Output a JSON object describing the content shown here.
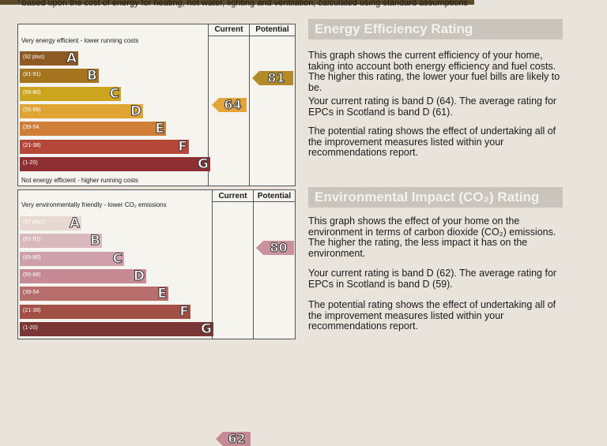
{
  "note": "based upon the cost of energy for heating, hot water, lighting and ventilation, calculated using standard assumptions",
  "energy": {
    "col_current": "Current",
    "col_potential": "Potential",
    "top_label": "Very energy efficient - lower running costs",
    "bottom_label": "Not energy efficient - higher running costs",
    "bands": [
      {
        "range": "(92 plus)",
        "letter": "A",
        "color": "#8c5a22"
      },
      {
        "range": "(81-91)",
        "letter": "B",
        "color": "#a5741e"
      },
      {
        "range": "(69-80)",
        "letter": "C",
        "color": "#cca51f"
      },
      {
        "range": "(55-68)",
        "letter": "D",
        "color": "#dfa434"
      },
      {
        "range": "(39-54",
        "letter": "E",
        "color": "#cf7f38"
      },
      {
        "range": "(21-38)",
        "letter": "F",
        "color": "#b5463a"
      },
      {
        "range": "(1-20)",
        "letter": "G",
        "color": "#8d2f33"
      }
    ],
    "current": "64",
    "potential": "81",
    "current_color": "#e2a43b",
    "potential_color": "#b48a28"
  },
  "environment": {
    "col_current": "Current",
    "col_potential": "Potential",
    "top_label": "Very environmentally friendly - lower CO₂ emissions",
    "bands": [
      {
        "range": "(92 plus)",
        "letter": "A",
        "color": "#e7d9d2"
      },
      {
        "range": "(81-91)",
        "letter": "B",
        "color": "#d9b9bd"
      },
      {
        "range": "(69-80)",
        "letter": "C",
        "color": "#cda0ab"
      },
      {
        "range": "(55-68)",
        "letter": "D",
        "color": "#c58a93"
      },
      {
        "range": "(39-54",
        "letter": "E",
        "color": "#b86d6d"
      },
      {
        "range": "(21-38)",
        "letter": "F",
        "color": "#a24f46"
      },
      {
        "range": "(1-20)",
        "letter": "G",
        "color": "#7a3634"
      }
    ],
    "current": "62",
    "potential": "80",
    "current_color": "#c58a93",
    "potential_color": "#c9919c"
  },
  "energy_text": {
    "title": "Energy Efficiency Rating",
    "p1": "This graph shows the current efficiency of your home, taking into account both energy efficiency and fuel costs. The higher this rating, the lower your fuel bills are likely to be.",
    "p2": "Your current rating is band D (64). The average rating for EPCs in Scotland is band D (61).",
    "p3": "The potential rating shows the effect of undertaking all of the improvement measures listed within your recommendations report."
  },
  "env_text": {
    "title": "Environmental Impact (CO₂) Rating",
    "p1": "This graph shows the effect of your home on the environment in terms of carbon dioxide (CO₂) emissions. The higher the rating, the less impact it has on the environment.",
    "p2": "Your current rating is band D (62). The average rating for EPCs in Scotland is band D (59).",
    "p3": "The potential rating shows the effect of undertaking all of the improvement measures listed within your recommendations report."
  }
}
